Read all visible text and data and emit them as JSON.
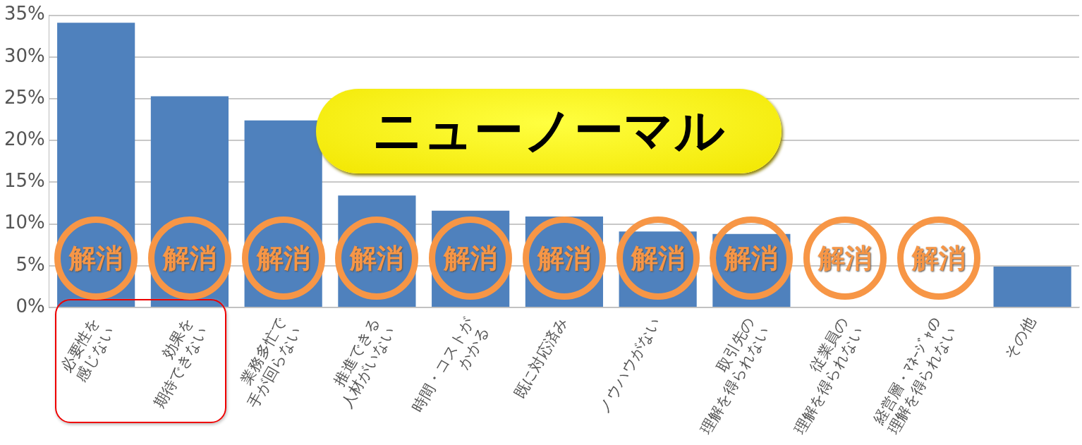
{
  "chart_data": {
    "type": "bar",
    "categories": [
      "必要性を\n感じない",
      "効果を\n期待できない",
      "業務多忙で\n手が回らない",
      "推進できる\n人材がいない",
      "時間・コストが\nかかる",
      "既に対応済み",
      "ノウハウがない",
      "取引先の\n理解を得られない",
      "従業員の\n理解を得られない",
      "経営層・ﾏﾈｰｼﾞｬの\n理解を得られない",
      "その他"
    ],
    "values": [
      34.1,
      25.3,
      22.4,
      13.4,
      11.6,
      10.9,
      9.1,
      8.8,
      null,
      null,
      4.9
    ],
    "color": "#4f81bd",
    "ylim": [
      0,
      35
    ],
    "yticks": [
      {
        "value": 0,
        "label": "0%"
      },
      {
        "value": 5,
        "label": "5%"
      },
      {
        "value": 10,
        "label": "10%"
      },
      {
        "value": 15,
        "label": "15%"
      },
      {
        "value": 20,
        "label": "20%"
      },
      {
        "value": 25,
        "label": "25%"
      },
      {
        "value": 30,
        "label": "30%"
      },
      {
        "value": 35,
        "label": "35%"
      }
    ],
    "grid": "y",
    "legend": false,
    "annotations": [
      "ニューノーマル",
      "解消",
      "解消",
      "解消",
      "解消",
      "解消",
      "解消",
      "解消",
      "解消",
      "解消",
      "解消"
    ]
  }
}
